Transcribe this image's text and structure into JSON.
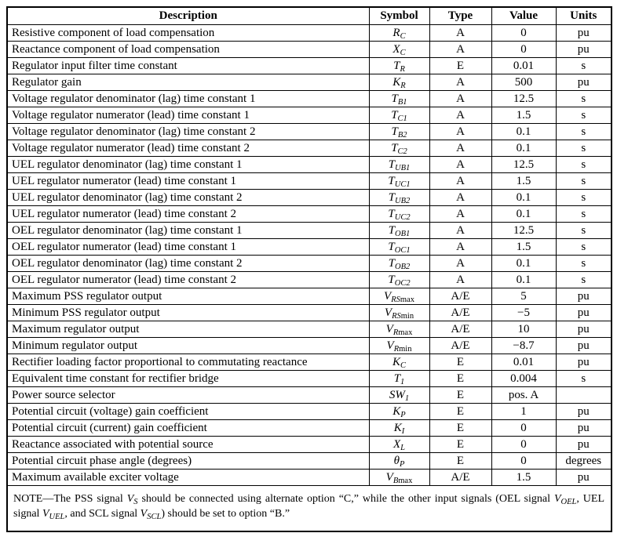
{
  "table": {
    "columns": [
      "Description",
      "Symbol",
      "Type",
      "Value",
      "Units"
    ],
    "rows": [
      {
        "description": "Resistive component of load compensation",
        "symbol": [
          [
            "i",
            "R"
          ],
          [
            "si",
            "C"
          ]
        ],
        "type": "A",
        "value": "0",
        "units": "pu"
      },
      {
        "description": "Reactance component of load compensation",
        "symbol": [
          [
            "i",
            "X"
          ],
          [
            "si",
            "C"
          ]
        ],
        "type": "A",
        "value": "0",
        "units": "pu"
      },
      {
        "description": "Regulator input filter time constant",
        "symbol": [
          [
            "i",
            "T"
          ],
          [
            "si",
            "R"
          ]
        ],
        "type": "E",
        "value": "0.01",
        "units": "s"
      },
      {
        "description": "Regulator gain",
        "symbol": [
          [
            "i",
            "K"
          ],
          [
            "si",
            "R"
          ]
        ],
        "type": "A",
        "value": "500",
        "units": "pu"
      },
      {
        "description": "Voltage regulator denominator (lag) time constant 1",
        "symbol": [
          [
            "i",
            "T"
          ],
          [
            "si",
            "B1"
          ]
        ],
        "type": "A",
        "value": "12.5",
        "units": "s"
      },
      {
        "description": "Voltage regulator numerator (lead) time constant 1",
        "symbol": [
          [
            "i",
            "T"
          ],
          [
            "si",
            "C1"
          ]
        ],
        "type": "A",
        "value": "1.5",
        "units": "s"
      },
      {
        "description": "Voltage regulator denominator (lag) time constant 2",
        "symbol": [
          [
            "i",
            "T"
          ],
          [
            "si",
            "B2"
          ]
        ],
        "type": "A",
        "value": "0.1",
        "units": "s"
      },
      {
        "description": "Voltage regulator numerator (lead) time constant 2",
        "symbol": [
          [
            "i",
            "T"
          ],
          [
            "si",
            "C2"
          ]
        ],
        "type": "A",
        "value": "0.1",
        "units": "s"
      },
      {
        "description": "UEL regulator denominator (lag) time constant 1",
        "symbol": [
          [
            "i",
            "T"
          ],
          [
            "si",
            "UB1"
          ]
        ],
        "type": "A",
        "value": "12.5",
        "units": "s"
      },
      {
        "description": "UEL regulator numerator (lead) time constant 1",
        "symbol": [
          [
            "i",
            "T"
          ],
          [
            "si",
            "UC1"
          ]
        ],
        "type": "A",
        "value": "1.5",
        "units": "s"
      },
      {
        "description": "UEL regulator denominator (lag) time constant 2",
        "symbol": [
          [
            "i",
            "T"
          ],
          [
            "si",
            "UB2"
          ]
        ],
        "type": "A",
        "value": "0.1",
        "units": "s"
      },
      {
        "description": "UEL regulator numerator (lead) time constant 2",
        "symbol": [
          [
            "i",
            "T"
          ],
          [
            "si",
            "UC2"
          ]
        ],
        "type": "A",
        "value": "0.1",
        "units": "s"
      },
      {
        "description": "OEL regulator denominator (lag) time constant 1",
        "symbol": [
          [
            "i",
            "T"
          ],
          [
            "si",
            "OB1"
          ]
        ],
        "type": "A",
        "value": "12.5",
        "units": "s"
      },
      {
        "description": "OEL regulator numerator (lead) time constant 1",
        "symbol": [
          [
            "i",
            "T"
          ],
          [
            "si",
            "OC1"
          ]
        ],
        "type": "A",
        "value": "1.5",
        "units": "s"
      },
      {
        "description": "OEL regulator denominator (lag) time constant 2",
        "symbol": [
          [
            "i",
            "T"
          ],
          [
            "si",
            "OB2"
          ]
        ],
        "type": "A",
        "value": "0.1",
        "units": "s"
      },
      {
        "description": "OEL regulator numerator (lead) time constant 2",
        "symbol": [
          [
            "i",
            "T"
          ],
          [
            "si",
            "OC2"
          ]
        ],
        "type": "A",
        "value": "0.1",
        "units": "s"
      },
      {
        "description": "Maximum PSS regulator output",
        "symbol": [
          [
            "i",
            "V"
          ],
          [
            "si",
            "RS"
          ],
          [
            "sr",
            "max"
          ]
        ],
        "type": "A/E",
        "value": "5",
        "units": "pu"
      },
      {
        "description": "Minimum PSS regulator output",
        "symbol": [
          [
            "i",
            "V"
          ],
          [
            "si",
            "RS"
          ],
          [
            "sr",
            "min"
          ]
        ],
        "type": "A/E",
        "value": "−5",
        "units": "pu"
      },
      {
        "description": "Maximum regulator output",
        "symbol": [
          [
            "i",
            "V"
          ],
          [
            "si",
            "R"
          ],
          [
            "sr",
            "max"
          ]
        ],
        "type": "A/E",
        "value": "10",
        "units": "pu"
      },
      {
        "description": "Minimum regulator output",
        "symbol": [
          [
            "i",
            "V"
          ],
          [
            "si",
            "R"
          ],
          [
            "sr",
            "min"
          ]
        ],
        "type": "A/E",
        "value": "−8.7",
        "units": "pu"
      },
      {
        "description": "Rectifier loading factor proportional to commutating reactance",
        "symbol": [
          [
            "i",
            "K"
          ],
          [
            "si",
            "C"
          ]
        ],
        "type": "E",
        "value": "0.01",
        "units": "pu"
      },
      {
        "description": "Equivalent time constant for rectifier bridge",
        "symbol": [
          [
            "i",
            "T"
          ],
          [
            "si",
            "1"
          ]
        ],
        "type": "E",
        "value": "0.004",
        "units": "s"
      },
      {
        "description": "Power source selector",
        "symbol": [
          [
            "i",
            "SW"
          ],
          [
            "si",
            "1"
          ]
        ],
        "type": "E",
        "value": "pos. A",
        "units": ""
      },
      {
        "description": "Potential circuit (voltage) gain coefficient",
        "symbol": [
          [
            "i",
            "K"
          ],
          [
            "si",
            "P"
          ]
        ],
        "type": "E",
        "value": "1",
        "units": "pu"
      },
      {
        "description": "Potential circuit (current) gain coefficient",
        "symbol": [
          [
            "i",
            "K"
          ],
          [
            "si",
            "I"
          ]
        ],
        "type": "E",
        "value": "0",
        "units": "pu"
      },
      {
        "description": "Reactance associated with potential source",
        "symbol": [
          [
            "i",
            "X"
          ],
          [
            "si",
            "L"
          ]
        ],
        "type": "E",
        "value": "0",
        "units": "pu"
      },
      {
        "description": "Potential circuit phase angle (degrees)",
        "symbol": [
          [
            "i",
            "θ"
          ],
          [
            "si",
            "P"
          ]
        ],
        "type": "E",
        "value": "0",
        "units": "degrees"
      },
      {
        "description": "Maximum available exciter voltage",
        "symbol": [
          [
            "i",
            "V"
          ],
          [
            "si",
            "B"
          ],
          [
            "sr",
            "max"
          ]
        ],
        "type": "A/E",
        "value": "1.5",
        "units": "pu"
      }
    ]
  },
  "note": {
    "segments": [
      [
        "r",
        "NOTE—The PSS signal "
      ],
      [
        "i",
        "V"
      ],
      [
        "si",
        "S"
      ],
      [
        "r",
        " should be connected using alternate option “C,” while the other input signals (OEL signal "
      ],
      [
        "i",
        "V"
      ],
      [
        "si",
        "OEL"
      ],
      [
        "r",
        ", UEL signal "
      ],
      [
        "i",
        "V"
      ],
      [
        "si",
        "UEL"
      ],
      [
        "r",
        ", and SCL signal "
      ],
      [
        "i",
        "V"
      ],
      [
        "si",
        "SCL"
      ],
      [
        "r",
        ") should be set to option “B.”"
      ]
    ]
  }
}
